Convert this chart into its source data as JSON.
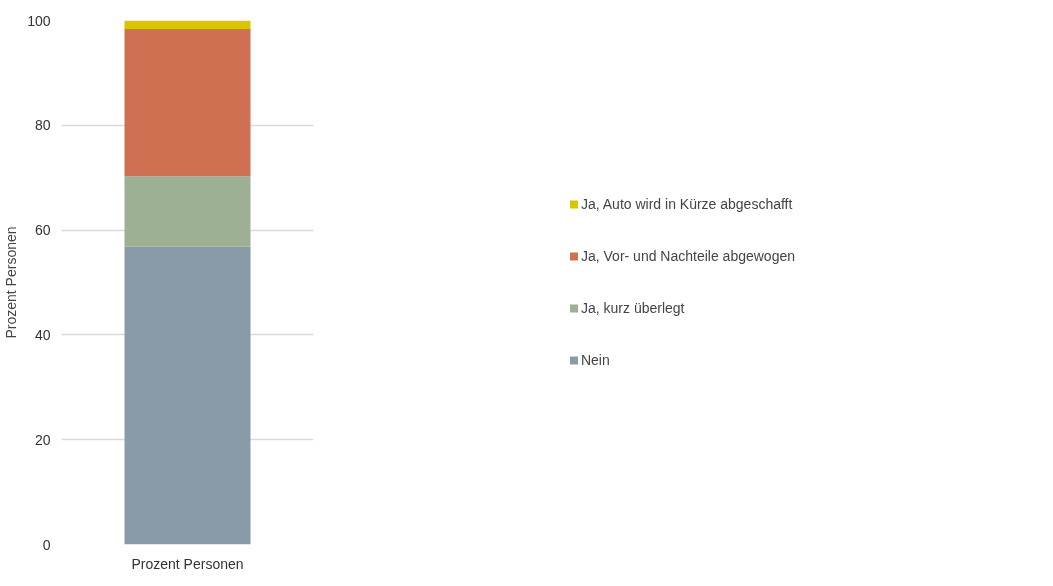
{
  "chart_data": {
    "type": "bar",
    "stacked": true,
    "categories": [
      "Prozent Personen"
    ],
    "ylabel": "Prozent Personen",
    "ylim": [
      0,
      100
    ],
    "yticks": [
      0,
      20,
      40,
      60,
      80,
      100
    ],
    "grid": "y",
    "legend": "right",
    "series": [
      {
        "name": "Nein",
        "color": "#889ba6",
        "values": [
          56.8
        ]
      },
      {
        "name": "Ja, kurz überlegt",
        "color": "#9eb094",
        "values": [
          13.5
        ]
      },
      {
        "name": "Ja, Vor- und Nachteile abgewogen",
        "color": "#cf7053",
        "values": [
          28.1
        ]
      },
      {
        "name": "Ja, Auto wird in Kürze abgeschafft",
        "color": "#d9c500",
        "values": [
          1.6
        ]
      }
    ]
  }
}
